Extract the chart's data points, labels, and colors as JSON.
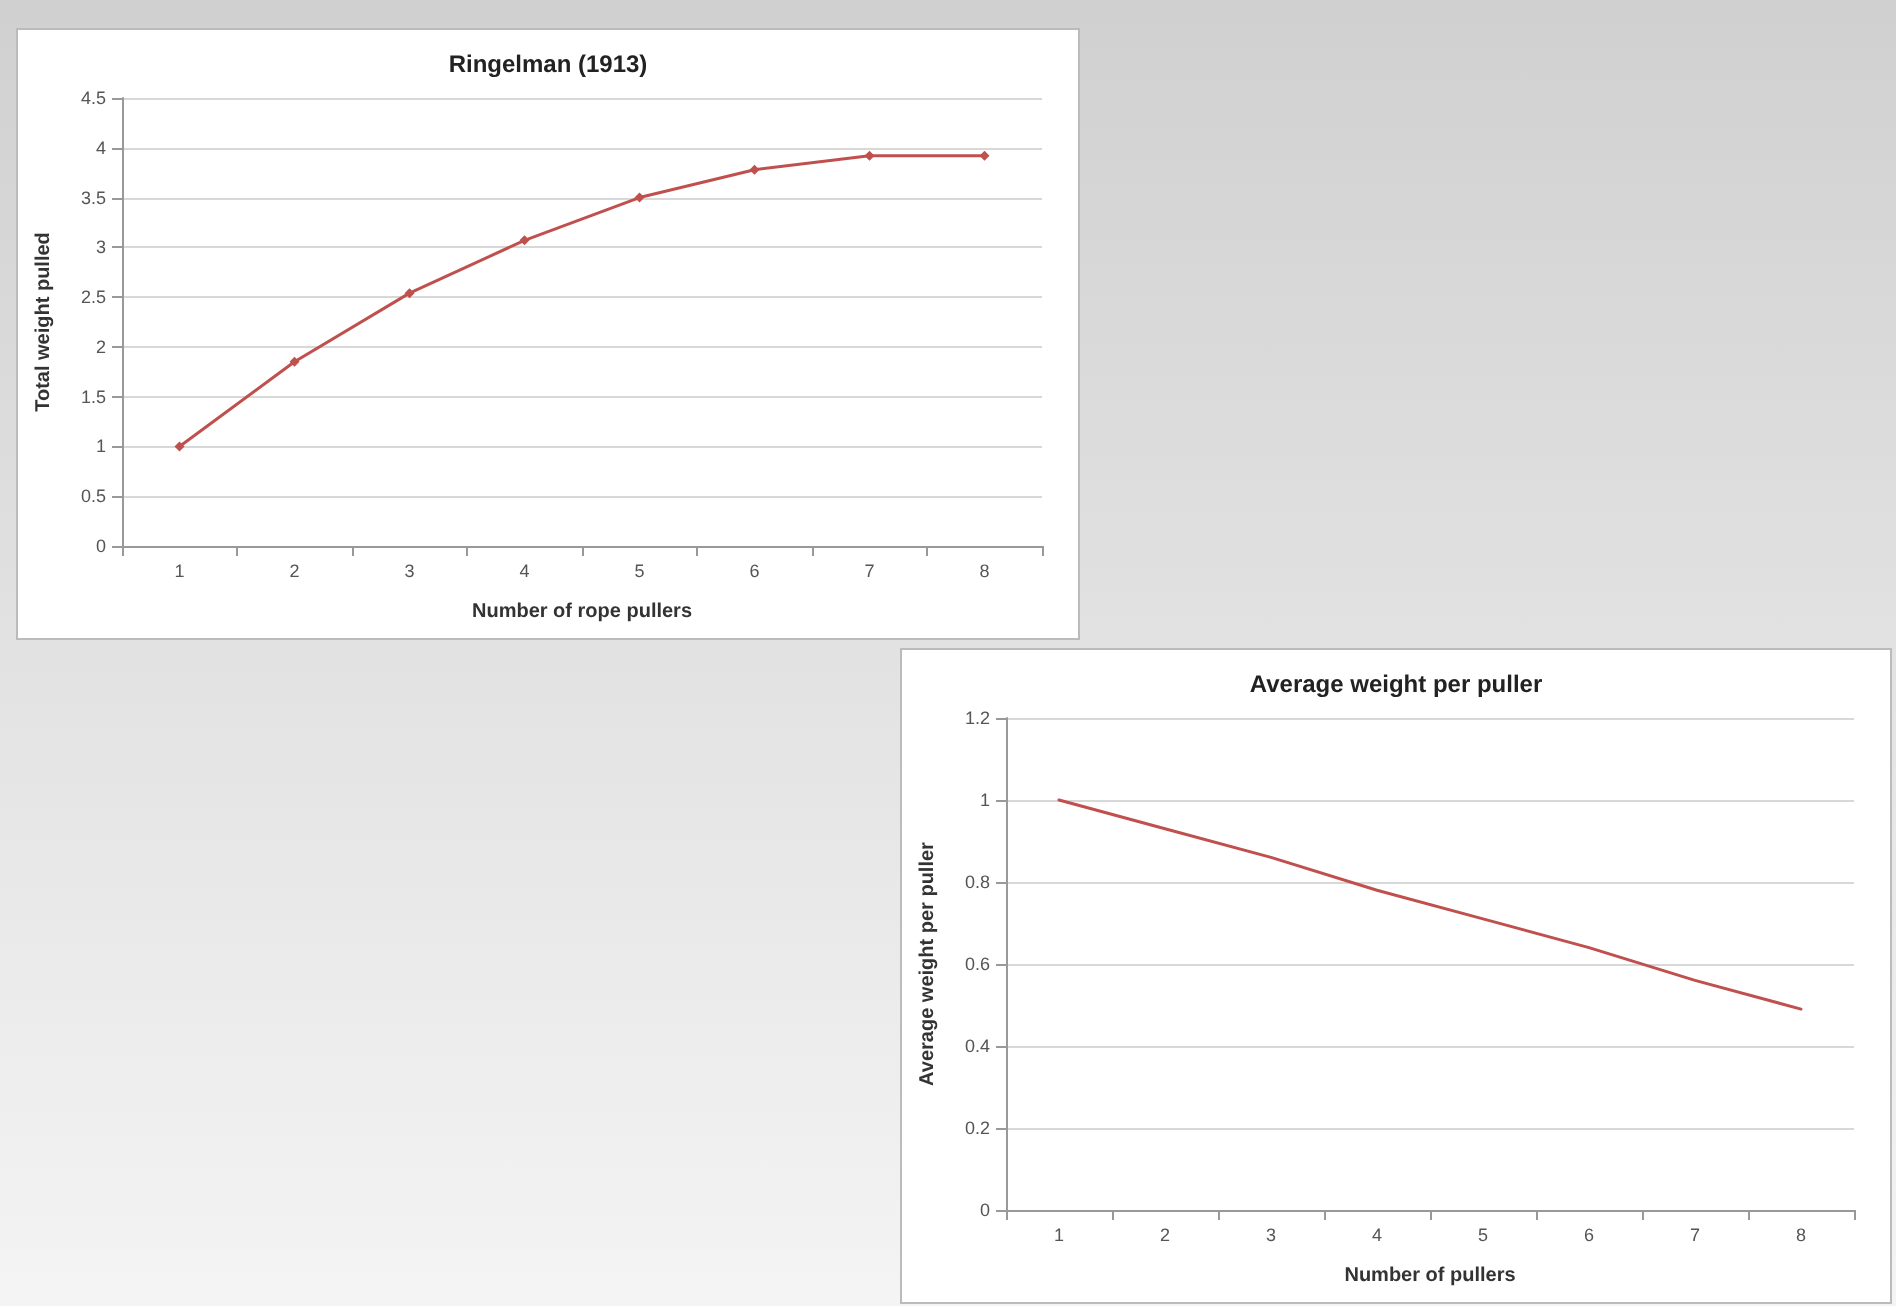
{
  "chart_data": [
    {
      "type": "line",
      "title": "Ringelman (1913)",
      "xlabel": "Number of rope pullers",
      "ylabel": "Total weight pulled",
      "categories": [
        "1",
        "2",
        "3",
        "4",
        "5",
        "6",
        "7",
        "8"
      ],
      "series": [
        {
          "color": "#c0504d",
          "values": [
            1,
            1.85,
            2.54,
            3.07,
            3.5,
            3.78,
            3.92,
            3.92
          ]
        }
      ],
      "ylim": [
        0,
        4.5
      ],
      "yticks": [
        0,
        0.5,
        1,
        1.5,
        2,
        2.5,
        3,
        3.5,
        4,
        4.5
      ],
      "grid": "y",
      "marker": "diamond",
      "line_style": "solid"
    },
    {
      "type": "line",
      "title": "Average weight per puller",
      "xlabel": "Number of pullers",
      "ylabel": "Average weight per puller",
      "categories": [
        "1",
        "2",
        "3",
        "4",
        "5",
        "6",
        "7",
        "8"
      ],
      "series": [
        {
          "color": "#c0504d",
          "values": [
            1,
            0.93,
            0.86,
            0.78,
            0.71,
            0.64,
            0.56,
            0.49
          ]
        }
      ],
      "ylim": [
        0,
        1.2
      ],
      "yticks": [
        0,
        0.2,
        0.4,
        0.6,
        0.8,
        1,
        1.2
      ],
      "grid": "y",
      "marker": "none",
      "line_style": "solid"
    }
  ]
}
